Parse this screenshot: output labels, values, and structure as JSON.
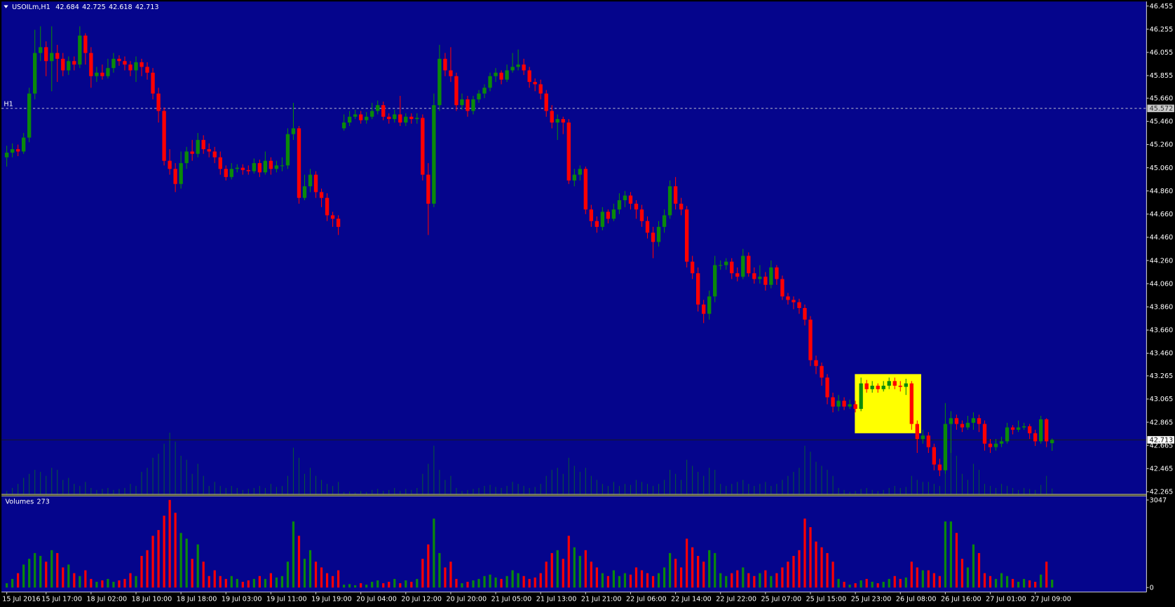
{
  "chart_data": {
    "type": "candlestick",
    "title": "USOILm,H1",
    "volume_title": "Volumes",
    "categories": [
      "15 Jul 2016",
      null,
      null,
      null,
      null,
      null,
      null,
      "15 Jul 17:00",
      null,
      null,
      null,
      null,
      null,
      null,
      null,
      "18 Jul 02:00",
      null,
      null,
      null,
      null,
      null,
      null,
      null,
      "18 Jul 10:00",
      null,
      null,
      null,
      null,
      null,
      null,
      null,
      "18 Jul 18:00",
      null,
      null,
      null,
      null,
      null,
      null,
      null,
      "19 Jul 03:00",
      null,
      null,
      null,
      null,
      null,
      null,
      null,
      "19 Jul 11:00",
      null,
      null,
      null,
      null,
      null,
      null,
      null,
      "19 Jul 19:00",
      null,
      null,
      null,
      null,
      null,
      null,
      null,
      "20 Jul 04:00",
      null,
      null,
      null,
      null,
      null,
      null,
      null,
      "20 Jul 12:00",
      null,
      null,
      null,
      null,
      null,
      null,
      null,
      "20 Jul 20:00",
      null,
      null,
      null,
      null,
      null,
      null,
      null,
      "21 Jul 05:00",
      null,
      null,
      null,
      null,
      null,
      null,
      null,
      "21 Jul 13:00",
      null,
      null,
      null,
      null,
      null,
      null,
      null,
      "21 Jul 21:00",
      null,
      null,
      null,
      null,
      null,
      null,
      null,
      "22 Jul 06:00",
      null,
      null,
      null,
      null,
      null,
      null,
      null,
      "22 Jul 14:00",
      null,
      null,
      null,
      null,
      null,
      null,
      null,
      "22 Jul 22:00",
      null,
      null,
      null,
      null,
      null,
      null,
      null,
      "25 Jul 07:00",
      null,
      null,
      null,
      null,
      null,
      null,
      null,
      "25 Jul 15:00",
      null,
      null,
      null,
      null,
      null,
      null,
      null,
      "25 Jul 23:00",
      null,
      null,
      null,
      null,
      null,
      null,
      null,
      "26 Jul 08:00",
      null,
      null,
      null,
      null,
      null,
      null,
      null,
      "26 Jul 16:00",
      null,
      null,
      null,
      null,
      null,
      null,
      null,
      "27 Jul 01:00",
      null,
      null,
      null,
      null,
      null,
      null,
      null,
      "27 Jul 09:00",
      null,
      null,
      null
    ],
    "open": [
      45.15,
      45.19,
      45.22,
      45.2,
      45.32,
      45.7,
      46.05,
      46.1,
      45.98,
      46.05,
      46.0,
      45.9,
      45.98,
      45.95,
      46.2,
      46.05,
      45.85,
      45.88,
      45.85,
      45.92,
      46.0,
      45.98,
      45.95,
      45.9,
      45.97,
      45.93,
      45.88,
      45.7,
      45.55,
      45.12,
      45.05,
      44.92,
      45.1,
      45.2,
      45.18,
      45.3,
      45.22,
      45.2,
      45.15,
      45.05,
      44.98,
      45.05,
      45.06,
      45.04,
      45.03,
      45.1,
      45.02,
      45.12,
      45.05,
      45.08,
      45.08,
      45.35,
      45.4,
      44.8,
      44.9,
      45.0,
      44.85,
      44.8,
      44.65,
      44.62,
      45.4,
      45.45,
      45.5,
      45.52,
      45.47,
      45.5,
      45.55,
      45.6,
      45.5,
      45.48,
      45.52,
      45.45,
      45.5,
      45.48,
      45.49,
      45.0,
      44.75,
      45.6,
      46.0,
      45.9,
      45.85,
      45.6,
      45.65,
      45.55,
      45.65,
      45.7,
      45.75,
      45.85,
      45.88,
      45.82,
      45.9,
      45.93,
      45.95,
      45.9,
      45.8,
      45.78,
      45.7,
      45.55,
      45.45,
      45.48,
      45.45,
      44.95,
      45.0,
      45.05,
      44.7,
      44.6,
      44.55,
      44.68,
      44.62,
      44.7,
      44.78,
      44.82,
      44.75,
      44.7,
      44.6,
      44.5,
      44.42,
      44.55,
      44.65,
      44.9,
      44.75,
      44.7,
      44.25,
      44.15,
      43.88,
      43.8,
      43.95,
      44.22,
      44.22,
      44.25,
      44.15,
      44.12,
      44.3,
      44.15,
      44.1,
      44.12,
      44.05,
      44.2,
      44.1,
      43.95,
      43.92,
      43.9,
      43.85,
      43.75,
      43.4,
      43.35,
      43.25,
      43.08,
      43.0,
      43.05,
      43.0,
      43.02,
      42.98,
      43.2,
      43.15,
      43.18,
      43.15,
      43.18,
      43.22,
      43.18,
      43.17,
      43.2,
      42.85,
      42.72,
      42.75,
      42.65,
      42.5,
      42.45,
      42.85,
      42.9,
      42.85,
      42.82,
      42.86,
      42.9,
      42.85,
      42.68,
      42.65,
      42.68,
      42.7,
      42.82,
      42.8,
      42.82,
      42.83,
      42.77,
      42.7,
      42.89,
      42.684
    ],
    "high": [
      45.25,
      45.27,
      45.26,
      45.36,
      45.75,
      46.25,
      46.28,
      46.15,
      46.28,
      46.12,
      46.05,
      46.02,
      46.02,
      46.28,
      46.22,
      46.1,
      45.93,
      45.95,
      46.0,
      46.05,
      46.03,
      46.02,
      45.98,
      46.02,
      46.0,
      45.97,
      45.92,
      45.75,
      45.58,
      45.22,
      45.1,
      45.2,
      45.24,
      45.3,
      45.36,
      45.34,
      45.27,
      45.24,
      45.2,
      45.08,
      45.1,
      45.09,
      45.09,
      45.08,
      45.14,
      45.13,
      45.2,
      45.15,
      45.12,
      45.15,
      45.4,
      45.62,
      45.42,
      45.0,
      45.05,
      45.03,
      44.88,
      44.84,
      44.68,
      44.65,
      45.52,
      45.55,
      45.56,
      45.55,
      45.54,
      45.62,
      45.64,
      45.63,
      45.53,
      45.56,
      45.68,
      45.53,
      45.53,
      45.53,
      45.52,
      45.1,
      45.7,
      46.12,
      46.05,
      46.1,
      45.88,
      45.7,
      45.68,
      45.68,
      45.73,
      45.78,
      45.88,
      45.92,
      45.9,
      45.95,
      46.05,
      46.08,
      46.0,
      45.93,
      45.83,
      45.82,
      45.73,
      45.6,
      45.52,
      45.5,
      45.48,
      45.05,
      45.08,
      45.07,
      44.74,
      44.64,
      44.72,
      44.7,
      44.75,
      44.84,
      44.86,
      44.85,
      44.78,
      44.74,
      44.64,
      44.55,
      44.6,
      44.7,
      44.95,
      44.98,
      44.8,
      44.73,
      44.3,
      44.2,
      43.92,
      44.0,
      44.3,
      44.26,
      44.28,
      44.28,
      44.2,
      44.36,
      44.33,
      44.2,
      44.22,
      44.16,
      44.26,
      44.22,
      44.13,
      43.98,
      43.95,
      43.93,
      43.88,
      43.78,
      43.44,
      43.38,
      43.28,
      43.12,
      43.1,
      43.08,
      43.06,
      43.05,
      43.25,
      43.23,
      43.22,
      43.2,
      43.22,
      43.25,
      43.25,
      43.22,
      43.24,
      43.22,
      42.88,
      42.8,
      42.78,
      42.68,
      42.55,
      43.03,
      42.96,
      42.93,
      42.88,
      42.92,
      42.95,
      42.93,
      42.88,
      42.72,
      42.72,
      42.74,
      42.86,
      42.84,
      42.88,
      42.86,
      42.85,
      42.8,
      42.92,
      42.9,
      42.725
    ],
    "low": [
      45.07,
      45.15,
      45.16,
      45.18,
      45.28,
      45.65,
      45.98,
      45.85,
      45.72,
      45.8,
      45.85,
      45.86,
      45.9,
      45.92,
      45.95,
      45.75,
      45.8,
      45.82,
      45.83,
      45.88,
      45.94,
      45.9,
      45.85,
      45.8,
      45.85,
      45.82,
      45.65,
      45.45,
      45.08,
      45.0,
      44.85,
      44.88,
      45.05,
      45.12,
      45.15,
      45.18,
      45.15,
      45.1,
      45.0,
      44.95,
      44.96,
      45.02,
      45.0,
      45.0,
      45.01,
      44.98,
      45.0,
      45.0,
      45.02,
      45.03,
      45.05,
      45.3,
      44.75,
      44.78,
      44.85,
      44.8,
      44.72,
      44.6,
      44.55,
      44.48,
      45.38,
      45.42,
      45.48,
      45.44,
      45.44,
      45.48,
      45.52,
      45.47,
      45.44,
      45.45,
      45.42,
      45.42,
      45.44,
      45.44,
      44.95,
      44.48,
      44.72,
      45.55,
      45.85,
      45.8,
      45.55,
      45.56,
      45.5,
      45.52,
      45.62,
      45.66,
      45.72,
      45.8,
      45.78,
      45.8,
      45.88,
      45.9,
      45.86,
      45.75,
      45.72,
      45.65,
      45.5,
      45.4,
      45.3,
      45.35,
      44.92,
      44.9,
      44.95,
      44.66,
      44.55,
      44.5,
      44.52,
      44.58,
      44.6,
      44.66,
      44.72,
      44.7,
      44.62,
      44.55,
      44.45,
      44.28,
      44.38,
      44.5,
      44.62,
      44.7,
      44.65,
      44.2,
      44.1,
      43.82,
      43.72,
      43.75,
      43.9,
      44.18,
      44.18,
      44.1,
      44.08,
      44.1,
      44.12,
      44.06,
      44.06,
      44.0,
      44.02,
      44.05,
      43.92,
      43.88,
      43.84,
      43.8,
      43.7,
      43.35,
      43.28,
      43.18,
      43.02,
      42.95,
      42.96,
      42.97,
      42.98,
      42.95,
      42.96,
      43.12,
      43.12,
      43.12,
      43.13,
      43.15,
      43.15,
      43.13,
      43.1,
      42.8,
      42.6,
      42.68,
      42.6,
      42.45,
      42.4,
      42.42,
      42.6,
      42.8,
      42.78,
      42.8,
      42.8,
      42.78,
      42.62,
      42.6,
      42.62,
      42.65,
      42.68,
      42.76,
      42.78,
      42.8,
      42.72,
      42.66,
      42.68,
      42.65,
      42.618
    ],
    "close": [
      45.19,
      45.22,
      45.2,
      45.32,
      45.7,
      46.05,
      46.1,
      45.98,
      46.05,
      46.0,
      45.9,
      45.98,
      45.95,
      46.2,
      46.05,
      45.85,
      45.88,
      45.85,
      45.92,
      46.0,
      45.98,
      45.95,
      45.9,
      45.97,
      45.93,
      45.88,
      45.7,
      45.55,
      45.12,
      45.05,
      44.92,
      45.1,
      45.2,
      45.18,
      45.3,
      45.22,
      45.2,
      45.15,
      45.05,
      44.98,
      45.05,
      45.06,
      45.04,
      45.03,
      45.1,
      45.02,
      45.12,
      45.05,
      45.08,
      45.08,
      45.35,
      45.4,
      44.8,
      44.9,
      45.0,
      44.85,
      44.8,
      44.65,
      44.62,
      44.55,
      45.45,
      45.5,
      45.52,
      45.47,
      45.5,
      45.55,
      45.6,
      45.5,
      45.48,
      45.52,
      45.45,
      45.5,
      45.48,
      45.49,
      45.0,
      44.75,
      45.6,
      46.0,
      45.9,
      45.85,
      45.6,
      45.65,
      45.55,
      45.65,
      45.7,
      45.75,
      45.85,
      45.88,
      45.82,
      45.9,
      45.93,
      45.95,
      45.9,
      45.8,
      45.78,
      45.7,
      45.55,
      45.45,
      45.48,
      45.45,
      44.95,
      45.0,
      45.05,
      44.7,
      44.6,
      44.55,
      44.68,
      44.62,
      44.7,
      44.78,
      44.82,
      44.75,
      44.7,
      44.6,
      44.5,
      44.42,
      44.55,
      44.65,
      44.9,
      44.75,
      44.7,
      44.25,
      44.15,
      43.88,
      43.8,
      43.95,
      44.22,
      44.22,
      44.25,
      44.15,
      44.12,
      44.3,
      44.15,
      44.1,
      44.12,
      44.05,
      44.2,
      44.1,
      43.95,
      43.92,
      43.9,
      43.85,
      43.75,
      43.4,
      43.35,
      43.25,
      43.08,
      43.0,
      43.05,
      43.0,
      43.02,
      42.98,
      43.2,
      43.15,
      43.18,
      43.15,
      43.18,
      43.22,
      43.18,
      43.17,
      43.2,
      42.85,
      42.72,
      42.75,
      42.65,
      42.5,
      42.45,
      42.85,
      42.9,
      42.85,
      42.82,
      42.86,
      42.9,
      42.85,
      42.68,
      42.65,
      42.68,
      42.7,
      42.82,
      42.8,
      42.82,
      42.83,
      42.77,
      42.7,
      42.89,
      42.7,
      42.713
    ],
    "volume": [
      150,
      300,
      500,
      800,
      1000,
      1200,
      1100,
      900,
      1300,
      1200,
      700,
      800,
      500,
      400,
      600,
      300,
      200,
      250,
      300,
      200,
      250,
      300,
      500,
      400,
      1100,
      1300,
      1800,
      2000,
      2500,
      3047,
      2600,
      1900,
      1700,
      1000,
      1500,
      900,
      400,
      600,
      400,
      300,
      400,
      300,
      200,
      250,
      300,
      400,
      300,
      500,
      350,
      400,
      900,
      2300,
      1800,
      1000,
      1300,
      900,
      700,
      500,
      400,
      600,
      100,
      120,
      80,
      150,
      100,
      200,
      250,
      150,
      200,
      300,
      150,
      250,
      200,
      300,
      1000,
      1500,
      2400,
      1200,
      700,
      900,
      300,
      150,
      200,
      250,
      300,
      400,
      450,
      350,
      300,
      400,
      600,
      500,
      400,
      300,
      350,
      500,
      900,
      1200,
      1300,
      1000,
      1800,
      1400,
      1100,
      1300,
      900,
      700,
      500,
      400,
      600,
      400,
      500,
      450,
      700,
      600,
      500,
      400,
      500,
      700,
      1200,
      1000,
      700,
      1700,
      1400,
      1100,
      900,
      1300,
      1200,
      500,
      400,
      500,
      600,
      700,
      500,
      400,
      500,
      600,
      400,
      500,
      700,
      900,
      1100,
      1300,
      2400,
      2100,
      1600,
      1400,
      1200,
      900,
      300,
      200,
      100,
      150,
      250,
      300,
      200,
      150,
      200,
      300,
      400,
      300,
      350,
      900,
      700,
      600,
      600,
      500,
      400,
      2300,
      2300,
      1900,
      1000,
      700,
      1500,
      1200,
      500,
      400,
      300,
      500,
      400,
      300,
      200,
      300,
      250,
      200,
      450,
      900,
      273
    ],
    "ylim": [
      42.246,
      46.494
    ],
    "yticks": [
      46.455,
      46.255,
      46.055,
      45.855,
      {
        "value": 45.66,
        "label": "45.660"
      },
      {
        "value": 45.46,
        "label": "45.460"
      },
      {
        "value": 45.26,
        "label": "45.260"
      },
      {
        "value": 45.06,
        "label": "45.060"
      },
      {
        "value": 44.86,
        "label": "44.860"
      },
      {
        "value": 44.66,
        "label": "44.660"
      },
      {
        "value": 44.46,
        "label": "44.460"
      },
      {
        "value": 44.26,
        "label": "44.260"
      },
      {
        "value": 44.06,
        "label": "44.060"
      },
      {
        "value": 43.86,
        "label": "43.860"
      },
      {
        "value": 43.66,
        "label": "43.660"
      },
      {
        "value": 43.46,
        "label": "43.460"
      },
      43.265,
      43.065,
      42.865,
      42.665,
      42.465,
      42.265
    ],
    "volume_ylim": [
      -130,
      3203
    ],
    "volume_yticks": [
      3047,
      0
    ],
    "hline": {
      "label": "H1",
      "value": 45.572,
      "color": "#d8d8d8"
    },
    "highlight": {
      "from": 150.9,
      "to": 162.7,
      "low": 42.77,
      "high": 43.28,
      "color": "#ffff00"
    },
    "colors": {
      "up": "#0a8a0a",
      "down": "#ff0000",
      "background": "#05058c",
      "grid": "#c8c8c8",
      "price_line": "#1a1a1a"
    },
    "grid": true
  }
}
